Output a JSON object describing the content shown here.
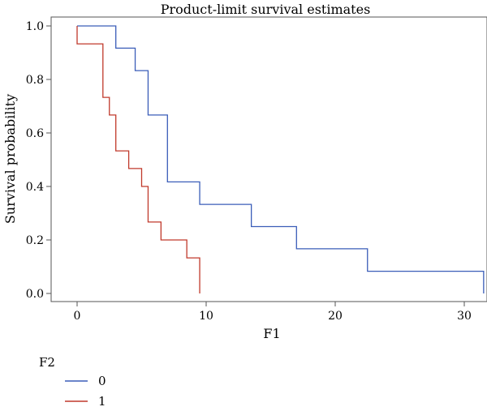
{
  "chart_data": {
    "type": "line",
    "step": true,
    "title": "Product-limit survival estimates",
    "xlabel": "F1",
    "ylabel": "Survival probability",
    "xlim": [
      -1,
      32
    ],
    "ylim": [
      0,
      1.0
    ],
    "xticks": [
      "0",
      "10",
      "20",
      "30"
    ],
    "yticks": [
      "0.0",
      "0.2",
      "0.4",
      "0.6",
      "0.8",
      "1.0"
    ],
    "grid": false,
    "legend": {
      "title": "F2",
      "placement": "bottom-left"
    },
    "series": [
      {
        "name": "0",
        "color": "#3a5db8",
        "x": [
          0,
          3,
          4.5,
          5.5,
          7,
          9.5,
          13.5,
          17,
          22.5,
          31.5
        ],
        "y": [
          1.0,
          0.917,
          0.833,
          0.667,
          0.417,
          0.333,
          0.25,
          0.167,
          0.083,
          0.0
        ]
      },
      {
        "name": "1",
        "color": "#c0392b",
        "x": [
          0,
          2,
          2.5,
          3,
          4,
          5,
          5.5,
          6.5,
          8.5,
          9.5
        ],
        "y": [
          0.933,
          0.733,
          0.667,
          0.533,
          0.467,
          0.4,
          0.267,
          0.2,
          0.133,
          0.0
        ]
      }
    ]
  }
}
